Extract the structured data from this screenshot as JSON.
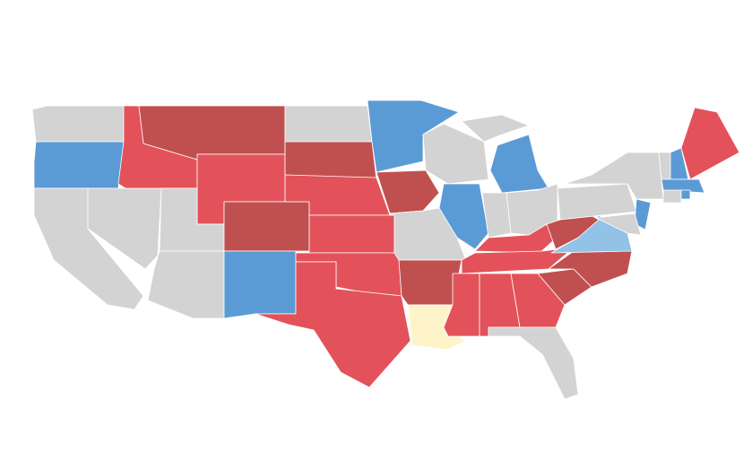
{
  "map": {
    "colors": [
      "#d3d3d3",
      "#e3525a",
      "#c0504f",
      "#5b9bd5",
      "#92c2e6",
      "#fdf5c9"
    ]
  }
}
